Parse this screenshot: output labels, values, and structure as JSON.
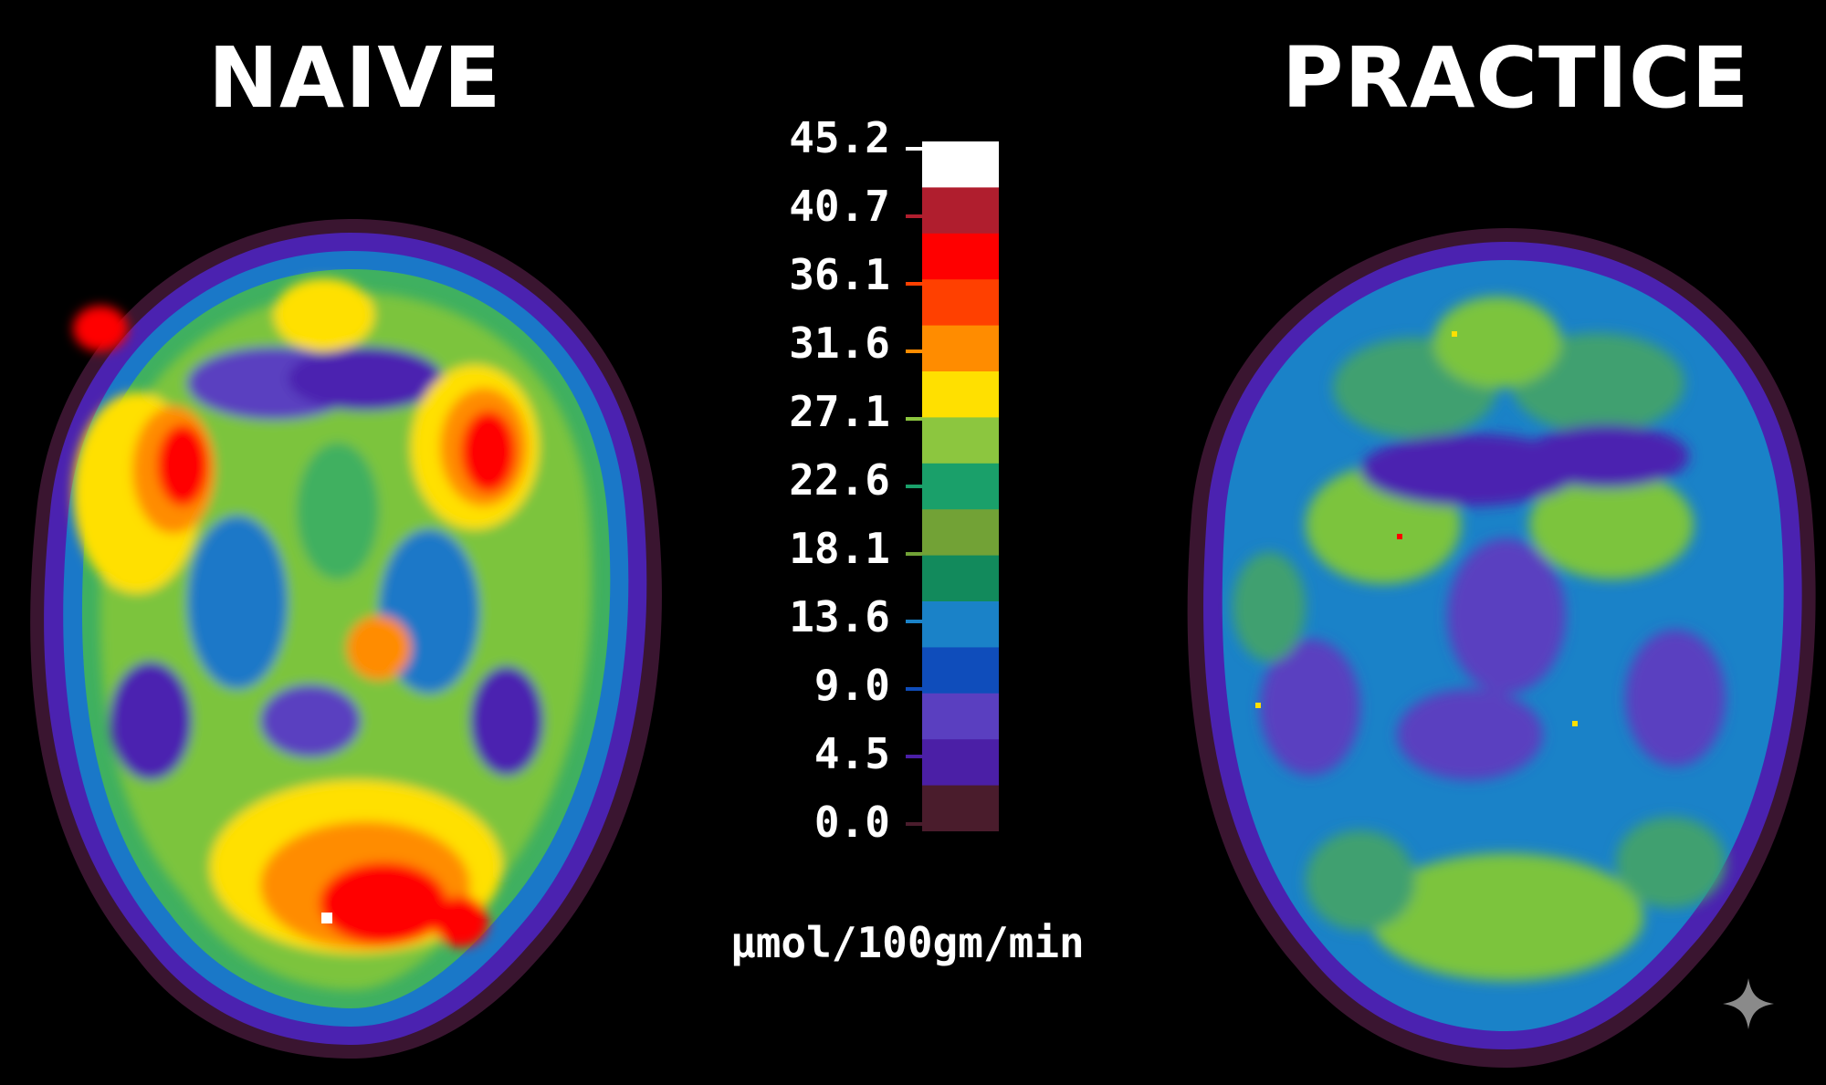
{
  "titles": {
    "left": "NAIVE",
    "right": "PRACTICE"
  },
  "scale": {
    "labels": [
      "45.2",
      "40.7",
      "36.1",
      "31.6",
      "27.1",
      "22.6",
      "18.1",
      "13.6",
      "9.0",
      "4.5",
      "0.0"
    ],
    "colors": [
      "#ffffff",
      "#b01e2e",
      "#ff0000",
      "#ff4000",
      "#ff8c00",
      "#ffe000",
      "#8cc63f",
      "#1aa06a",
      "#72a236",
      "#128a5c",
      "#1a82c8",
      "#0f4dbb",
      "#5a3fc0",
      "#4b1fa6",
      "#4a1c2c"
    ],
    "unit": "µmol/100gm/min"
  },
  "icons": {
    "sparkle": "sparkle-icon"
  }
}
